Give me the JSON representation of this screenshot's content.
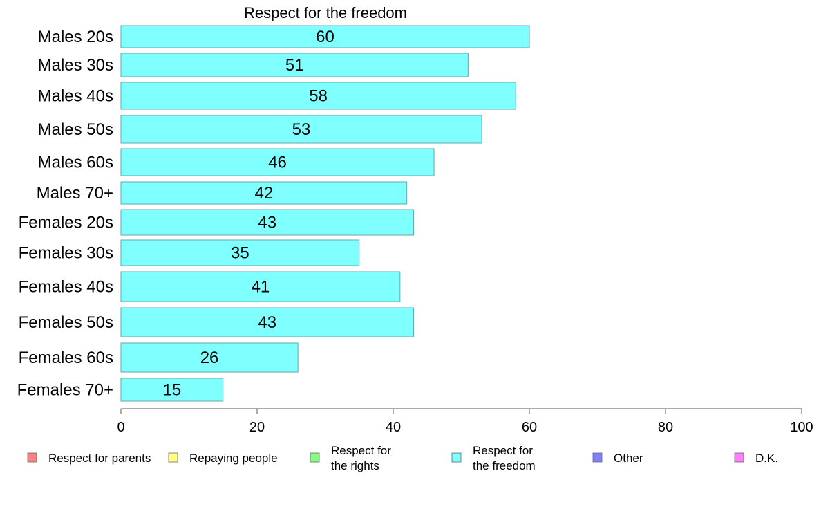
{
  "chart_data": {
    "type": "bar",
    "orientation": "horizontal",
    "title": "Respect for the freedom",
    "categories": [
      "Males 20s",
      "Males 30s",
      "Males 40s",
      "Males 50s",
      "Males 60s",
      "Males 70+",
      "Females 20s",
      "Females 30s",
      "Females 40s",
      "Females 50s",
      "Females 60s",
      "Females 70+"
    ],
    "values": [
      60,
      51,
      58,
      53,
      46,
      42,
      43,
      35,
      41,
      43,
      26,
      15
    ],
    "xlim": [
      0,
      100
    ],
    "xticks": [
      0,
      20,
      40,
      60,
      80,
      100
    ],
    "bar_color": "#80ffff",
    "bar_border": "#5fa8b0",
    "grid": false,
    "legend_position": "bottom",
    "legend": [
      {
        "lines": [
          "Respect for parents"
        ],
        "color": "#ff8080"
      },
      {
        "lines": [
          "Repaying people"
        ],
        "color": "#ffff80"
      },
      {
        "lines": [
          "Respect for",
          "the rights"
        ],
        "color": "#80ff80"
      },
      {
        "lines": [
          "Respect for",
          "the freedom"
        ],
        "color": "#80ffff"
      },
      {
        "lines": [
          "Other"
        ],
        "color": "#8080ff"
      },
      {
        "lines": [
          "D.K."
        ],
        "color": "#ff80ff"
      }
    ]
  }
}
